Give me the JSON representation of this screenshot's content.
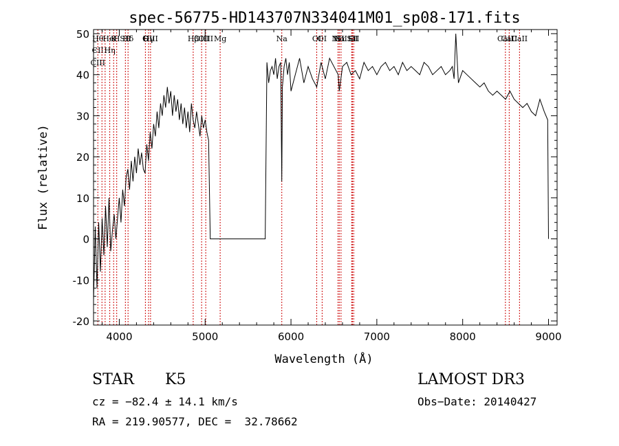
{
  "chart_data": {
    "type": "line",
    "title": "spec-56775-HD143707N334041M01_sp08-171.fits",
    "xlabel": "Wavelength (Å)",
    "ylabel": "Flux (relative)",
    "xlim": [
      3700,
      9100
    ],
    "ylim": [
      -21,
      51
    ],
    "xticks": [
      4000,
      5000,
      6000,
      7000,
      8000,
      9000
    ],
    "yticks": [
      -20,
      -10,
      0,
      10,
      20,
      30,
      40,
      50
    ],
    "grid": false,
    "line_color": "#000000",
    "marker_color": "#cc0000",
    "series": [
      {
        "x": [
          3700,
          3720,
          3740,
          3760,
          3780,
          3800,
          3820,
          3840,
          3860,
          3880,
          3900,
          3920,
          3940,
          3960,
          3980,
          4000,
          4020,
          4040,
          4060,
          4080,
          4100,
          4120,
          4140,
          4160,
          4180,
          4200,
          4220,
          4240,
          4260,
          4280,
          4300,
          4320,
          4340,
          4360,
          4380,
          4400,
          4420,
          4440,
          4460,
          4480,
          4500,
          4520,
          4540,
          4560,
          4580,
          4600,
          4620,
          4640,
          4660,
          4680,
          4700,
          4720,
          4740,
          4760,
          4780,
          4800,
          4820,
          4840,
          4860,
          4880,
          4900,
          4920,
          4940,
          4960,
          4980,
          5000,
          5020,
          5040,
          5060,
          5080,
          5100,
          5200,
          5300,
          5400,
          5500,
          5600,
          5700,
          5720,
          5740,
          5760,
          5780,
          5800,
          5820,
          5840,
          5860,
          5880,
          5893,
          5900,
          5920,
          5940,
          5960,
          5980,
          6000,
          6050,
          6100,
          6150,
          6200,
          6250,
          6300,
          6350,
          6400,
          6450,
          6500,
          6550,
          6563,
          6600,
          6650,
          6700,
          6750,
          6800,
          6850,
          6900,
          6950,
          7000,
          7050,
          7100,
          7150,
          7200,
          7250,
          7300,
          7350,
          7400,
          7450,
          7500,
          7550,
          7600,
          7650,
          7700,
          7750,
          7800,
          7850,
          7880,
          7900,
          7920,
          7950,
          8000,
          8050,
          8100,
          8150,
          8200,
          8250,
          8300,
          8350,
          8400,
          8450,
          8500,
          8550,
          8600,
          8650,
          8700,
          8750,
          8800,
          8850,
          8900,
          8950,
          8990,
          9000
        ],
        "y": [
          -15,
          3,
          -12,
          4,
          -8,
          5,
          -4,
          8,
          -2,
          10,
          -3,
          2,
          6,
          0,
          5,
          10,
          4,
          12,
          8,
          15,
          17,
          12,
          19,
          14,
          20,
          16,
          22,
          18,
          21,
          17,
          16,
          23,
          19,
          26,
          22,
          28,
          25,
          31,
          27,
          33,
          30,
          35,
          32,
          37,
          33,
          36,
          30,
          35,
          31,
          34,
          29,
          33,
          28,
          32,
          27,
          31,
          26,
          33,
          29,
          27,
          31,
          28,
          25,
          30,
          27,
          29,
          26,
          24,
          0,
          0,
          0,
          0,
          0,
          0,
          0,
          0,
          0,
          43,
          38,
          41,
          42,
          40,
          44,
          39,
          42,
          43,
          14,
          37,
          42,
          44,
          40,
          43,
          36,
          40,
          44,
          38,
          42,
          39,
          37,
          43,
          39,
          44,
          42,
          40,
          36,
          42,
          43,
          40,
          41,
          39,
          43,
          41,
          42,
          40,
          42,
          43,
          41,
          42,
          40,
          43,
          41,
          42,
          41,
          40,
          43,
          42,
          40,
          41,
          42,
          40,
          41,
          42,
          39,
          50,
          38,
          41,
          40,
          39,
          38,
          37,
          38,
          36,
          35,
          36,
          35,
          34,
          36,
          34,
          33,
          32,
          33,
          31,
          30,
          34,
          31,
          29,
          0
        ]
      }
    ],
    "lines": [
      {
        "x": 3750,
        "labels": [
          "Hθ",
          "CII",
          "CIII"
        ]
      },
      {
        "x": 3798,
        "labels": []
      },
      {
        "x": 3835,
        "labels": []
      },
      {
        "x": 3889,
        "labels": [
          "HeI",
          "Hη"
        ]
      },
      {
        "x": 3934,
        "labels": [
          "K"
        ]
      },
      {
        "x": 3970,
        "labels": [
          "H"
        ]
      },
      {
        "x": 4071,
        "labels": [
          "SII"
        ]
      },
      {
        "x": 4102,
        "labels": [
          "Hδ"
        ]
      },
      {
        "x": 4304,
        "labels": [
          "G"
        ]
      },
      {
        "x": 4341,
        "labels": [
          "Hγ"
        ]
      },
      {
        "x": 4364,
        "labels": [
          "OIII"
        ]
      },
      {
        "x": 4861,
        "labels": [
          "Hβ"
        ]
      },
      {
        "x": 4959,
        "labels": [
          "OIII"
        ]
      },
      {
        "x": 5007,
        "labels": [
          "OIII"
        ]
      },
      {
        "x": 5175,
        "labels": [
          "Mg"
        ]
      },
      {
        "x": 5893,
        "labels": [
          "Na"
        ]
      },
      {
        "x": 6300,
        "labels": [
          "OI"
        ]
      },
      {
        "x": 6363,
        "labels": [
          "OI"
        ]
      },
      {
        "x": 6548,
        "labels": [
          "NII"
        ]
      },
      {
        "x": 6563,
        "labels": [
          "Hα"
        ]
      },
      {
        "x": 6583,
        "labels": [
          "NII"
        ]
      },
      {
        "x": 6707,
        "labels": [
          "Li"
        ]
      },
      {
        "x": 6716,
        "labels": [
          "SII"
        ]
      },
      {
        "x": 6731,
        "labels": [
          "SII"
        ]
      },
      {
        "x": 8498,
        "labels": [
          "CaII"
        ]
      },
      {
        "x": 8542,
        "labels": [
          "CaII"
        ]
      },
      {
        "x": 8662,
        "labels": [
          "CaII"
        ]
      }
    ]
  },
  "footer": {
    "obj_class": "STAR",
    "subclass": "K5",
    "survey": "LAMOST DR3",
    "cz": "cz = −82.4 ± 14.1 km/s",
    "obs_date": "Obs−Date: 20140427",
    "radec": "RA = 219.90577, DEC =  32.78662"
  }
}
